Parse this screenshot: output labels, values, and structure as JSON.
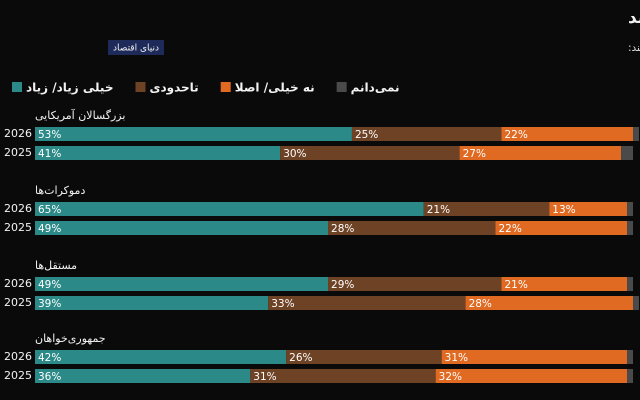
{
  "chart_data": {
    "type": "stacked-bar-horizontal",
    "title": "بیشتر آمریکایی‌ها نگران تاثیرات زیست‌محیطی هوش مصنوعی هستند",
    "subtitle": "درصد بزرگسالان آمریکایی که نگران تاثیرات زیست‌محیطی هوش مصنوعی هستند:",
    "logo": "دنیای اقتصاد",
    "groups": [
      "بزرگسالان آمریکایی",
      "دموکرات‌ها",
      "مستقل‌ها",
      "جمهوری‌خواهان"
    ],
    "categories": [
      "2026",
      "2025",
      "2026",
      "2025",
      "2026",
      "2025",
      "2026",
      "2025"
    ],
    "xlim": [
      0,
      101
    ],
    "series": [
      {
        "name": "خیلی زیاد/ زیاد",
        "color": "#2b8a88",
        "values": [
          53,
          41,
          65,
          49,
          49,
          39,
          42,
          36
        ],
        "value_labels": [
          "53%",
          "41%",
          "65%",
          "49%",
          "49%",
          "39%",
          "42%",
          "36%"
        ]
      },
      {
        "name": "تاحدودی",
        "color": "#6e4225",
        "values": [
          25,
          30,
          21,
          28,
          29,
          33,
          26,
          31
        ],
        "value_labels": [
          "25%",
          "30%",
          "21%",
          "28%",
          "29%",
          "33%",
          "26%",
          "31%"
        ]
      },
      {
        "name": "نه خیلی/ اصلا",
        "color": "#e06a22",
        "values": [
          22,
          27,
          13,
          22,
          21,
          28,
          31,
          32
        ],
        "value_labels": [
          "22%",
          "27%",
          "13%",
          "22%",
          "21%",
          "28%",
          "31%",
          "32%"
        ]
      },
      {
        "name": "نمی‌دانم",
        "color": "#4a4a4a",
        "values": [
          1,
          2,
          1,
          1,
          1,
          1,
          1,
          1
        ]
      }
    ]
  }
}
